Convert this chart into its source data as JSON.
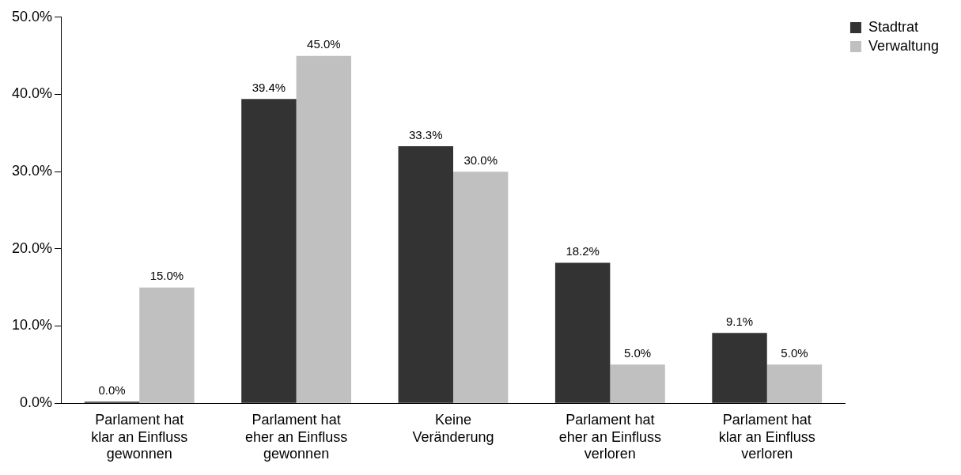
{
  "chart_data": {
    "type": "bar",
    "categories": [
      "Parlament hat klar an Einfluss gewonnen",
      "Parlament hat eher an Einfluss gewonnen",
      "Keine Veränderung",
      "Parlament hat eher an Einfluss verloren",
      "Parlament hat klar an Einfluss verloren"
    ],
    "series": [
      {
        "name": "Stadtrat",
        "color": "#333333",
        "values": [
          0,
          39.4,
          33.3,
          18.2,
          9.1
        ],
        "value_labels": [
          "0.0%",
          "39.4%",
          "33.3%",
          "18.2%",
          "9.1%"
        ]
      },
      {
        "name": "Verwaltung",
        "color": "#c0c0c0",
        "values": [
          15,
          45,
          30,
          5,
          5
        ],
        "value_labels": [
          "15.0%",
          "45.0%",
          "30.0%",
          "5.0%",
          "5.0%"
        ]
      }
    ],
    "ylim": [
      0,
      50
    ],
    "yticks": [
      {
        "value": 0,
        "label": "0.0%"
      },
      {
        "value": 10,
        "label": "10.0%"
      },
      {
        "value": 20,
        "label": "20.0%"
      },
      {
        "value": 30,
        "label": "30.0%"
      },
      {
        "value": 40,
        "label": "40.0%"
      },
      {
        "value": 50,
        "label": "50.0%"
      }
    ],
    "grid": false,
    "legend": "top right"
  }
}
